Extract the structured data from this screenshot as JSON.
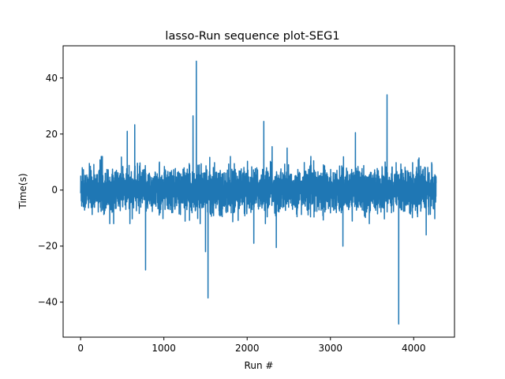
{
  "chart_data": {
    "type": "line",
    "title": "lasso-Run sequence plot-SEG1",
    "xlabel": "Run #",
    "ylabel": "Time(s)",
    "xlim": [
      -210,
      4490
    ],
    "ylim": [
      -52.5,
      51.5
    ],
    "x_ticks": [
      0,
      1000,
      2000,
      3000,
      4000
    ],
    "x_tick_labels": [
      "0",
      "1000",
      "2000",
      "3000",
      "4000"
    ],
    "y_ticks": [
      -40,
      -20,
      0,
      20,
      40
    ],
    "y_tick_labels": [
      "−40",
      "−20",
      "0",
      "20",
      "40"
    ],
    "grid": false,
    "series_color": "#1f77b4",
    "n_points": 4270,
    "noise_band": {
      "typical_low": -8,
      "typical_high": 8
    },
    "notable_points": [
      {
        "x": 20,
        "y": 8
      },
      {
        "x": 560,
        "y": 21
      },
      {
        "x": 650,
        "y": 23.3
      },
      {
        "x": 780,
        "y": -28.5
      },
      {
        "x": 1350,
        "y": 26.5
      },
      {
        "x": 1390,
        "y": 46
      },
      {
        "x": 1500,
        "y": -22
      },
      {
        "x": 1530,
        "y": -38.5
      },
      {
        "x": 2080,
        "y": -19
      },
      {
        "x": 2200,
        "y": 24.5
      },
      {
        "x": 2300,
        "y": 15.5
      },
      {
        "x": 2350,
        "y": -20.5
      },
      {
        "x": 2480,
        "y": 15
      },
      {
        "x": 3150,
        "y": -20
      },
      {
        "x": 3300,
        "y": 20.5
      },
      {
        "x": 3680,
        "y": 34
      },
      {
        "x": 3820,
        "y": -47.8
      },
      {
        "x": 4150,
        "y": -16
      }
    ]
  }
}
